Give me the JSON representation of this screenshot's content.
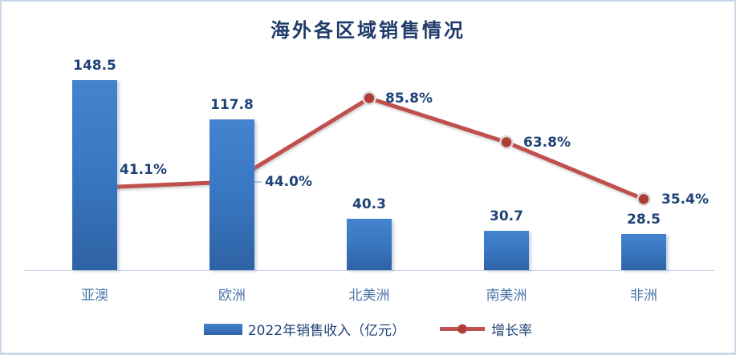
{
  "title": "海外各区域销售情况",
  "colors": {
    "bar_fill": "#3a78c4",
    "line": "#c0504d",
    "marker_fill": "#ae3c37",
    "marker_ring": "#dcdcdc",
    "title_text": "#1e3a68",
    "value_label_text": "#1f4377",
    "category_label_text": "#4c74a8",
    "axis_line": "#c5d3e6",
    "frame_border": "#c9d7eb",
    "leader_line": "#9fb6d4"
  },
  "legend": [
    {
      "label": "2022年销售收入（亿元）",
      "type": "bar"
    },
    {
      "label": "增长率",
      "type": "line"
    }
  ],
  "chart_data": {
    "type": "bar+line combo",
    "title": "海外各区域销售情况",
    "categories": [
      "亚澳",
      "欧洲",
      "北美洲",
      "南美洲",
      "非洲"
    ],
    "series": [
      {
        "name": "2022年销售收入（亿元）",
        "type": "bar",
        "values": [
          148.5,
          117.8,
          40.3,
          30.7,
          28.5
        ],
        "value_labels": [
          "148.5",
          "117.8",
          "40.3",
          "30.7",
          "28.5"
        ]
      },
      {
        "name": "增长率",
        "type": "line",
        "values_percent": [
          41.1,
          44.0,
          85.8,
          63.8,
          35.4
        ],
        "point_labels": [
          "41.1%",
          "44.0%",
          "85.8%",
          "63.8%",
          "35.4%"
        ]
      }
    ],
    "xlabel": "",
    "ylabel": "",
    "ylim_primary": [
      0,
      160
    ],
    "ylim_secondary_percent": [
      0,
      100
    ],
    "grid": false,
    "axis_labels_hidden": true,
    "legend_position": "bottom"
  }
}
